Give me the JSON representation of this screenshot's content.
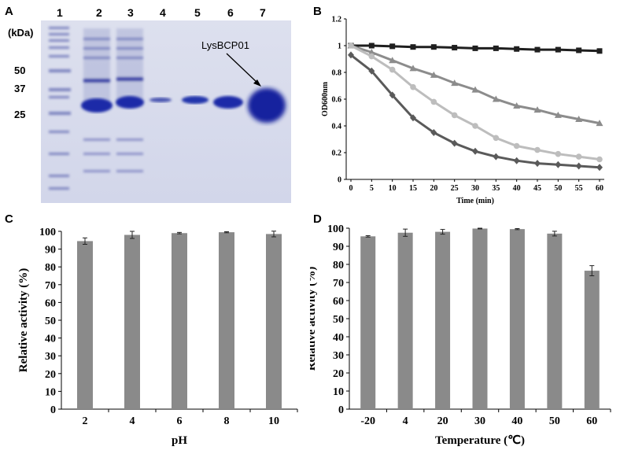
{
  "panels": {
    "a": "A",
    "b": "B",
    "c": "C",
    "d": "D"
  },
  "gel": {
    "lanes": [
      "1",
      "2",
      "3",
      "4",
      "5",
      "6",
      "7"
    ],
    "kda_title": "(kDa)",
    "markers": [
      "50",
      "37",
      "25"
    ],
    "annotation": "LysBCP01"
  },
  "chart_data": [
    {
      "type": "line",
      "xlabel": "Time (min)",
      "ylabel": "OD600nm",
      "x": [
        0,
        5,
        10,
        15,
        20,
        25,
        30,
        35,
        40,
        45,
        50,
        55,
        60
      ],
      "xlim": [
        0,
        60
      ],
      "ylim": [
        0,
        1.2
      ],
      "yticks": [
        "0",
        "0.2",
        "0.4",
        "0.6",
        "0.8",
        "1",
        "1.2"
      ],
      "series": [
        {
          "values": [
            1.0,
            1.0,
            0.995,
            0.99,
            0.99,
            0.985,
            0.98,
            0.98,
            0.975,
            0.97,
            0.97,
            0.965,
            0.96
          ],
          "color": "#1f1f1f",
          "marker": "square"
        },
        {
          "values": [
            1.0,
            0.95,
            0.89,
            0.83,
            0.78,
            0.72,
            0.67,
            0.6,
            0.55,
            0.52,
            0.48,
            0.45,
            0.42
          ],
          "color": "#8c8c8c",
          "marker": "triangle"
        },
        {
          "values": [
            1.0,
            0.92,
            0.82,
            0.69,
            0.58,
            0.48,
            0.4,
            0.31,
            0.25,
            0.22,
            0.19,
            0.17,
            0.15
          ],
          "color": "#bdbdbd",
          "marker": "circle"
        },
        {
          "values": [
            0.93,
            0.81,
            0.63,
            0.46,
            0.35,
            0.27,
            0.21,
            0.17,
            0.14,
            0.12,
            0.11,
            0.1,
            0.09
          ],
          "color": "#5a5a5a",
          "marker": "diamond"
        }
      ]
    },
    {
      "type": "bar",
      "xlabel": "pH",
      "ylabel": "Relative activity (%)",
      "categories": [
        "2",
        "4",
        "6",
        "8",
        "10"
      ],
      "values": [
        94.5,
        98,
        99,
        99.5,
        98.5
      ],
      "errors": [
        1.8,
        2.0,
        0.4,
        0.3,
        1.6
      ],
      "ylim": [
        0,
        100
      ],
      "yticks": [
        "0",
        "10",
        "20",
        "30",
        "40",
        "50",
        "60",
        "70",
        "80",
        "90",
        "100"
      ],
      "color": "#8a8a8a"
    },
    {
      "type": "bar",
      "xlabel": "Temperature (℃)",
      "ylabel": "Relative activity (%)",
      "categories": [
        "-20",
        "4",
        "20",
        "30",
        "40",
        "50",
        "60"
      ],
      "values": [
        95.5,
        97.5,
        98,
        99.8,
        99.5,
        97,
        76.5
      ],
      "errors": [
        0.4,
        2.0,
        1.3,
        0.2,
        0.3,
        1.3,
        2.8
      ],
      "ylim": [
        0,
        100
      ],
      "yticks": [
        "0",
        "10",
        "20",
        "30",
        "40",
        "50",
        "60",
        "70",
        "80",
        "90",
        "100"
      ],
      "color": "#8a8a8a"
    }
  ]
}
